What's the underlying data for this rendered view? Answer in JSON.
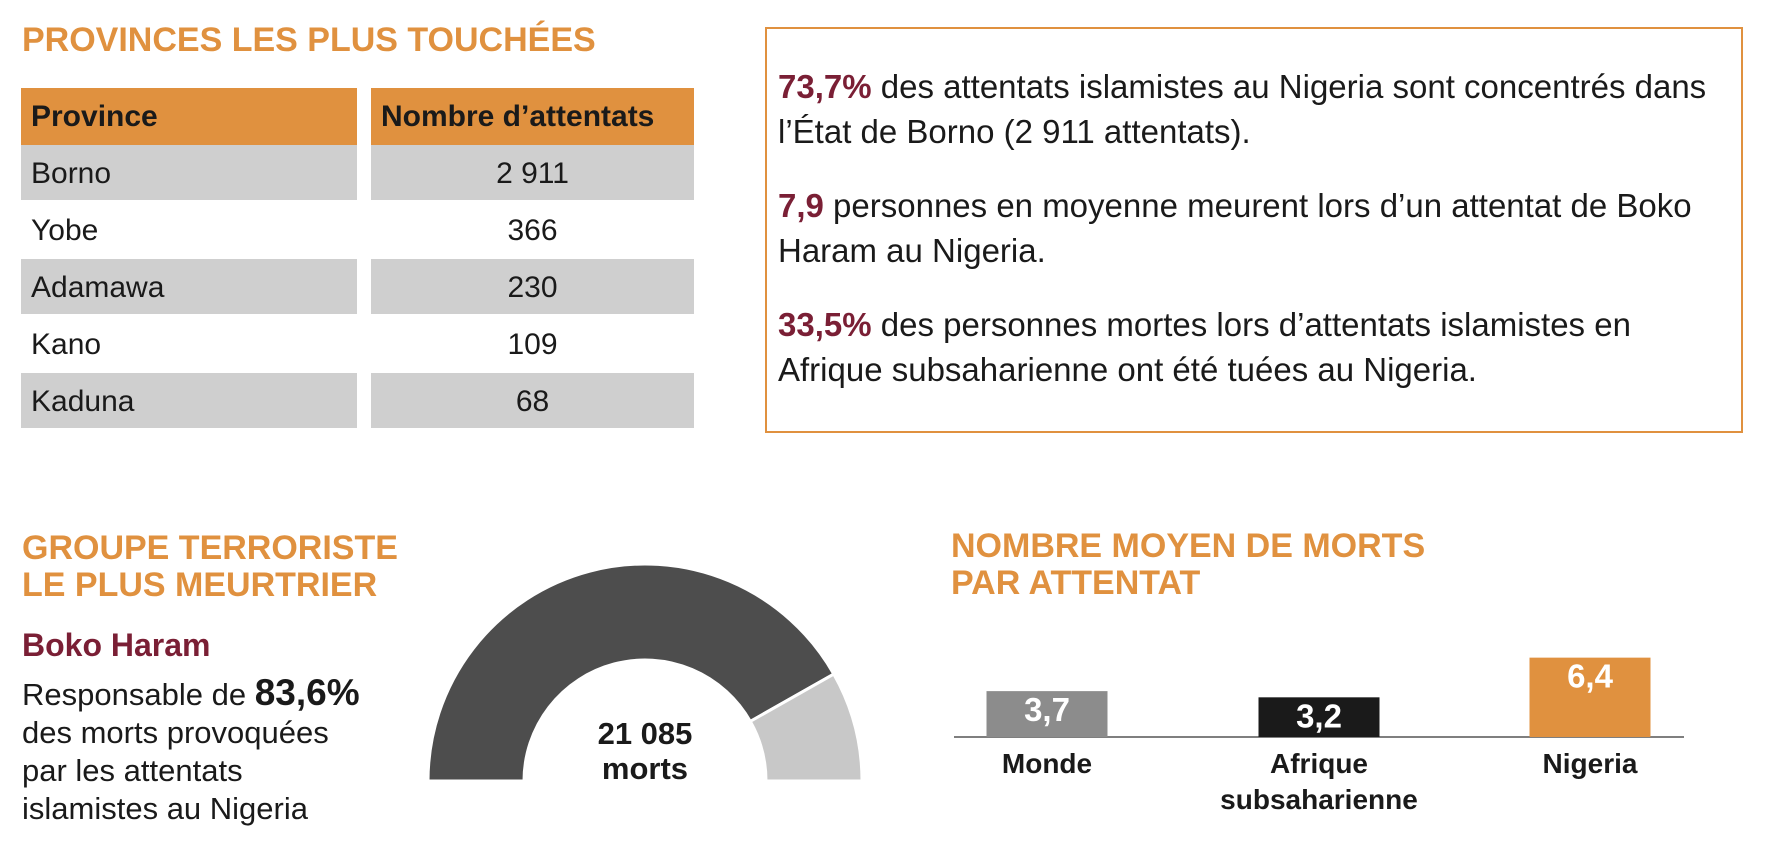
{
  "provinces": {
    "title": "PROVINCES LES PLUS TOUCHÉES",
    "table": {
      "header": [
        "Province",
        "Nombre d’attentats"
      ],
      "rows": [
        [
          "Borno",
          "2 911"
        ],
        [
          "Yobe",
          "366"
        ],
        [
          "Adamawa",
          "230"
        ],
        [
          "Kano",
          "109"
        ],
        [
          "Kaduna",
          "68"
        ]
      ]
    }
  },
  "facts": [
    {
      "highlight": "73,7%",
      "text": "des attentats islamistes au Nigeria sont concentrés dans l’État de Borno (2 911 attentats)."
    },
    {
      "highlight": "7,9",
      "text": "personnes en moyenne meurent lors d’un attentat de Boko Haram au Nigeria."
    },
    {
      "highlight": "33,5%",
      "text": "des personnes mortes lors d’attentats islamistes en Afrique subsaharienne ont été tuées au Nigeria."
    }
  ],
  "group": {
    "title": [
      "GROUPE TERRORISTE",
      "LE PLUS MEURTRIER"
    ],
    "name": "Boko Haram",
    "description": [
      "Responsable de",
      "83,6%",
      "des morts provoquées",
      "par les attentats",
      "islamistes au Nigeria"
    ]
  },
  "chart_data": [
    {
      "type": "gauge",
      "values": [
        83.6,
        16.4
      ],
      "colors": [
        "#4d4d4d",
        "#c8c8c8"
      ],
      "center_label": [
        "21 085",
        "morts"
      ]
    },
    {
      "type": "bar",
      "title": [
        "NOMBRE MOYEN DE MORTS",
        "PAR ATTENTAT"
      ],
      "categories": [
        "Monde",
        "Afrique subsaharienne",
        "Nigeria"
      ],
      "values": [
        3.7,
        3.2,
        6.4
      ],
      "value_labels": [
        "3,7",
        "3,2",
        "6,4"
      ],
      "colors": [
        "#8c8c8c",
        "#1a1a1a",
        "#e0913f"
      ]
    }
  ]
}
